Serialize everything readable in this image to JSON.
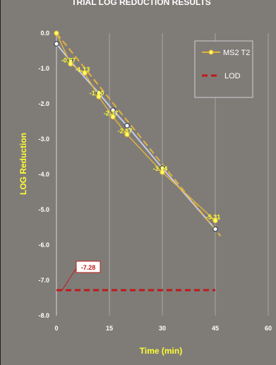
{
  "chart_data": {
    "type": "line",
    "title": "TRIAL LOG REDUCTION RESULTS",
    "xlabel": "Time (min)",
    "ylabel": "LOG Reduction",
    "xlim": [
      0,
      60
    ],
    "ylim": [
      -8,
      0
    ],
    "x_ticks": [
      0,
      15,
      30,
      45,
      60
    ],
    "x_tick_labels": [
      "0",
      "15",
      "30",
      "45",
      "60"
    ],
    "y_ticks": [
      0,
      -1,
      -2,
      -3,
      -4,
      -5,
      -6,
      -7,
      -8
    ],
    "y_tick_labels": [
      "0.0",
      "-1.0",
      "-2.0",
      "-3.0",
      "-4.0",
      "-5.0",
      "-6.0",
      "-7.0",
      "-8.0"
    ],
    "grid": "vertical",
    "legend_position": "top-right",
    "colors": {
      "background": "#7f7c78",
      "series": "#e2b23c",
      "series_marker_fill": "#ffff66",
      "measured": "#c5cde6",
      "lod": "#c01818",
      "label": "#ffff33",
      "lod_label_bg": "#ffffff",
      "lod_label_text": "#c01818"
    },
    "series": [
      {
        "name": "MS2 T2",
        "x": [
          0,
          4,
          8,
          12,
          16,
          20,
          30,
          45
        ],
        "y": [
          0,
          -0.87,
          -1.13,
          -1.8,
          -2.37,
          -2.87,
          -3.94,
          -5.31
        ],
        "labels": [
          "",
          "-0.87",
          "-1.13",
          "-1.80",
          "-2.37",
          "-2.87",
          "-3.94",
          "-5.31"
        ]
      },
      {
        "name": "",
        "x": [
          0,
          4,
          12,
          16,
          20,
          30,
          45
        ],
        "y": [
          -0.3,
          -0.8,
          -1.7,
          -2.18,
          -2.62,
          -3.82,
          -5.55
        ]
      },
      {
        "name": "LOD",
        "x": [
          0,
          45
        ],
        "y": [
          -7.28,
          -7.28
        ],
        "callout": "-7.28"
      }
    ]
  }
}
